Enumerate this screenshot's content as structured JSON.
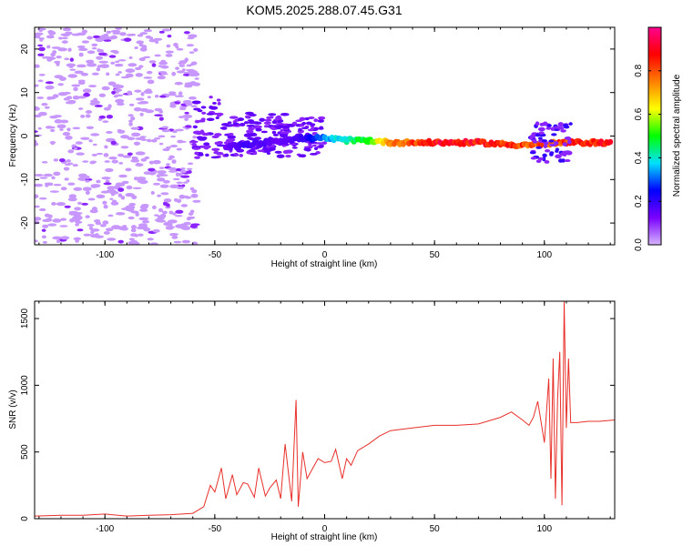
{
  "title": "KOM5.2025.288.07.45.G31",
  "chart_data": [
    {
      "type": "heatmap",
      "xlabel": "Height of straight line (km)",
      "ylabel": "Frequency (Hz)",
      "xlim": [
        -132,
        132
      ],
      "ylim": [
        -25,
        25
      ],
      "xticks": [
        -100,
        -50,
        0,
        50,
        100
      ],
      "xtick_labels": [
        "-100",
        "-50",
        "0",
        "50",
        "100"
      ],
      "yticks": [
        -20,
        -10,
        0,
        10,
        20
      ],
      "ytick_labels": [
        "-20",
        "-10",
        "0",
        "10",
        "20"
      ],
      "colorbar": {
        "label": "Normalized spectral amplitude",
        "range": [
          0,
          1
        ],
        "ticks": [
          0,
          0.2,
          0.4,
          0.6,
          0.8
        ],
        "tick_labels": [
          "0.0",
          "0.2",
          "0.4",
          "0.6",
          "0.8"
        ],
        "colormap": [
          "#d6b4ff",
          "#7a00ff",
          "#0000ff",
          "#00e0ff",
          "#00ff00",
          "#ffff00",
          "#ff8000",
          "#ff0000",
          "#ff0090"
        ]
      },
      "ridge": {
        "description_free_points": [
          {
            "x": -45,
            "y": -2.5,
            "amp": 0.15
          },
          {
            "x": -35,
            "y": -2.0,
            "amp": 0.2
          },
          {
            "x": -20,
            "y": -1.0,
            "amp": 0.15
          },
          {
            "x": -10,
            "y": -0.5,
            "amp": 0.2
          },
          {
            "x": 0,
            "y": -0.5,
            "amp": 0.35
          },
          {
            "x": 10,
            "y": -1.0,
            "amp": 0.45
          },
          {
            "x": 20,
            "y": -1.0,
            "amp": 0.55
          },
          {
            "x": 30,
            "y": -1.5,
            "amp": 0.8
          },
          {
            "x": 50,
            "y": -1.5,
            "amp": 0.95
          },
          {
            "x": 70,
            "y": -1.5,
            "amp": 0.95
          },
          {
            "x": 85,
            "y": -2.0,
            "amp": 0.9
          },
          {
            "x": 95,
            "y": -2.0,
            "amp": 0.85
          },
          {
            "x": 110,
            "y": -1.5,
            "amp": 0.9
          },
          {
            "x": 130,
            "y": -1.5,
            "amp": 0.95
          }
        ]
      }
    },
    {
      "type": "line",
      "xlabel": "Height of straight line (km)",
      "ylabel": "SNR (v/v)",
      "xlim": [
        -132,
        132
      ],
      "ylim": [
        0,
        1630
      ],
      "xticks": [
        -100,
        -50,
        0,
        50,
        100
      ],
      "xtick_labels": [
        "-100",
        "-50",
        "0",
        "50",
        "100"
      ],
      "yticks": [
        0,
        500,
        1000,
        1500
      ],
      "ytick_labels": [
        "0",
        "500",
        "1000",
        "1500"
      ],
      "color": "#e8302a",
      "series": [
        {
          "x": [
            -132,
            -120,
            -110,
            -100,
            -90,
            -80,
            -70,
            -60,
            -55,
            -52,
            -50,
            -47,
            -45,
            -42,
            -40,
            -37,
            -35,
            -32,
            -30,
            -27,
            -25,
            -22,
            -20,
            -18,
            -15,
            -13,
            -12,
            -10,
            -8,
            -5,
            -3,
            0,
            3,
            5,
            8,
            10,
            12,
            15,
            20,
            25,
            30,
            40,
            50,
            60,
            70,
            80,
            85,
            90,
            93,
            95,
            97,
            100,
            102,
            103,
            104,
            105,
            106,
            107,
            108,
            109,
            110,
            111,
            112,
            115,
            120,
            125,
            132
          ],
          "y": [
            20,
            25,
            25,
            35,
            20,
            25,
            30,
            40,
            90,
            250,
            200,
            380,
            150,
            330,
            180,
            270,
            260,
            160,
            380,
            170,
            230,
            290,
            150,
            560,
            130,
            890,
            90,
            500,
            300,
            390,
            450,
            420,
            430,
            520,
            300,
            450,
            400,
            510,
            560,
            620,
            660,
            680,
            700,
            700,
            710,
            760,
            800,
            740,
            700,
            760,
            880,
            570,
            1050,
            300,
            1200,
            150,
            900,
            1250,
            100,
            1630,
            680,
            1200,
            720,
            720,
            730,
            730,
            740
          ]
        }
      ]
    }
  ]
}
